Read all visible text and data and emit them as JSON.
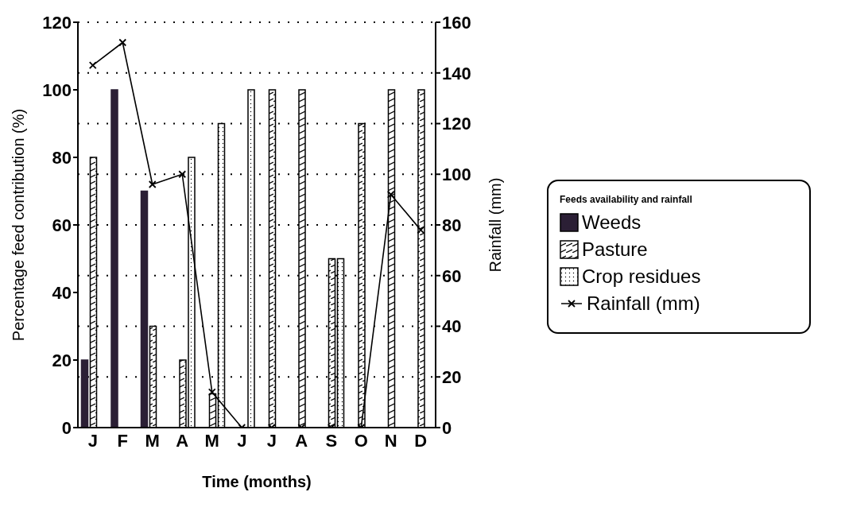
{
  "chart_data": {
    "type": "bar",
    "xlabel": "Time (months)",
    "ylabel": "Percentage feed contribution (%)",
    "y2label": "Rainfall (mm)",
    "legend_title": "Feeds availability and rainfall",
    "categories": [
      "J",
      "F",
      "M",
      "A",
      "M",
      "J",
      "J",
      "A",
      "S",
      "O",
      "N",
      "D"
    ],
    "series": [
      {
        "name": "Weeds",
        "color": "#2b1f35",
        "values": [
          20,
          100,
          70,
          null,
          null,
          null,
          null,
          null,
          null,
          null,
          null,
          null
        ]
      },
      {
        "name": "Pasture",
        "color": "#000000",
        "values": [
          80,
          null,
          30,
          20,
          10,
          null,
          100,
          100,
          50,
          90,
          100,
          100
        ]
      },
      {
        "name": "Crop residues",
        "color": "#000000",
        "values": [
          null,
          null,
          null,
          80,
          90,
          100,
          null,
          null,
          50,
          null,
          null,
          null
        ]
      },
      {
        "name": "Rainfall (mm)",
        "type": "line",
        "axis": "y2",
        "color": "#000000",
        "marker": "cross",
        "values": [
          143,
          152,
          96,
          100,
          14,
          0,
          0,
          0,
          0,
          0,
          92,
          78
        ]
      }
    ],
    "ylim": [
      0,
      120
    ],
    "yticks": [
      0,
      20,
      40,
      60,
      80,
      100,
      120
    ],
    "y2lim": [
      0,
      160
    ],
    "y2ticks": [
      0,
      20,
      40,
      60,
      80,
      100,
      120,
      140,
      160
    ],
    "grid": "y2",
    "legend": "right"
  }
}
